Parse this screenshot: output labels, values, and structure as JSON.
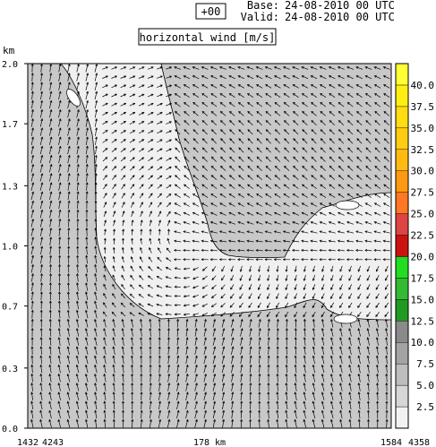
{
  "header": {
    "forecast_step": "+00",
    "base_label": "Base:",
    "base_value": "24-08-2010  00 UTC",
    "valid_label": "Valid:",
    "valid_value": "24-08-2010  00 UTC",
    "title": "horizontal wind [m/s]"
  },
  "chart_data": {
    "type": "heatmap",
    "title": "horizontal wind [m/s]",
    "ylabel": "km",
    "yticks": [
      {
        "value": 0.0,
        "label": "0.0"
      },
      {
        "value": 0.33,
        "label": "0.3"
      },
      {
        "value": 0.67,
        "label": "0.7"
      },
      {
        "value": 1.0,
        "label": "1.0"
      },
      {
        "value": 1.33,
        "label": "1.3"
      },
      {
        "value": 1.67,
        "label": "1.7"
      },
      {
        "value": 2.0,
        "label": "2.0"
      }
    ],
    "ylim": [
      0,
      2.0
    ],
    "xlim": [
      0,
      1
    ],
    "x_bottom_labels": [
      {
        "pos": 0.0,
        "label": "1432"
      },
      {
        "pos": 0.5,
        "label": "178 km"
      },
      {
        "pos": 1.0,
        "label": "1584"
      }
    ],
    "x_corner_labels": {
      "left": "4243",
      "right": "4358"
    },
    "colorbar": {
      "levels": [
        "2.5",
        "5.0",
        "7.5",
        "10.0",
        "12.5",
        "15.0",
        "17.5",
        "20.0",
        "22.5",
        "25.0",
        "27.5",
        "30.0",
        "32.5",
        "35.0",
        "37.5",
        "40.0"
      ],
      "colors": [
        "#f2f2f2",
        "#d6d6d6",
        "#bdbdbd",
        "#a3a3a3",
        "#8a8a8a",
        "#229922",
        "#33bb33",
        "#22dd22",
        "#cc1111",
        "#dd4444",
        "#ff7722",
        "#ff9911",
        "#ffbb11",
        "#ffcc11",
        "#ffdd11",
        "#ffee11",
        "#ffff33"
      ]
    },
    "fields": {
      "high_speed_region_color": "#c8c8c8",
      "low_speed_region_color": "#f0f0f0"
    }
  }
}
